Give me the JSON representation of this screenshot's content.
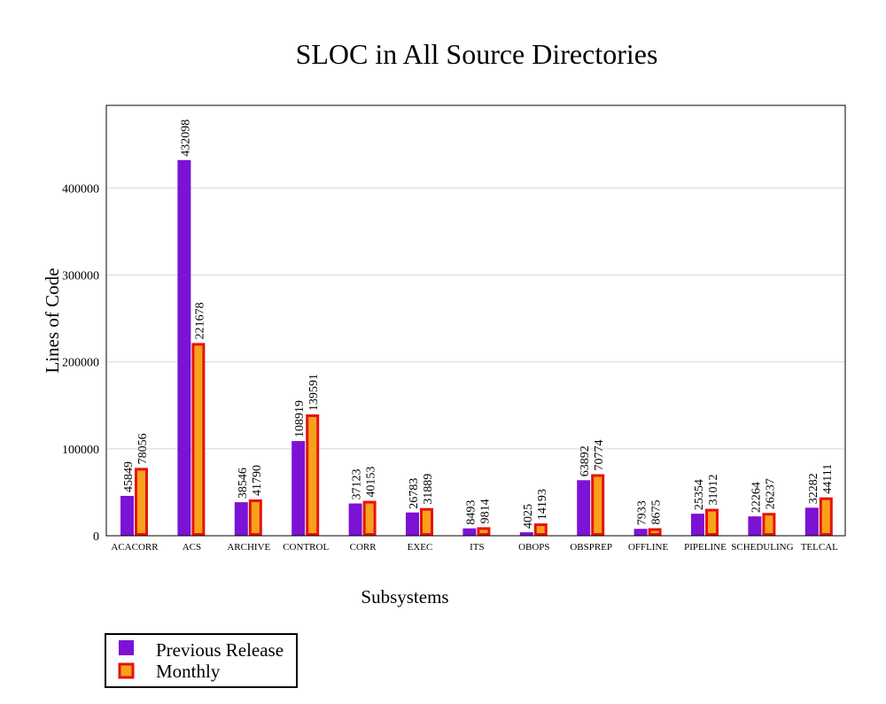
{
  "chart_data": {
    "type": "bar",
    "title": "SLOC in All Source Directories",
    "xlabel": "Subsystems",
    "ylabel": "Lines of Code",
    "ylim": [
      0,
      495000
    ],
    "yticks": [
      0,
      100000,
      200000,
      300000,
      400000
    ],
    "ytick_labels": [
      "0",
      "100000",
      "200000",
      "300000",
      "400000"
    ],
    "grid": true,
    "legend_position": "bottom-left",
    "categories": [
      "ACACORR",
      "ACS",
      "ARCHIVE",
      "CONTROL",
      "CORR",
      "EXEC",
      "ITS",
      "OBOPS",
      "OBSPREP",
      "OFFLINE",
      "PIPELINE",
      "SCHEDULING",
      "TELCAL"
    ],
    "series": [
      {
        "name": "Previous Release",
        "color": "#7b12d4",
        "values": [
          45849,
          432098,
          38546,
          108919,
          37123,
          26783,
          8493,
          4025,
          63892,
          7933,
          25354,
          22264,
          32282
        ],
        "labels": [
          "45849",
          "432098",
          "38546",
          "108919",
          "37123",
          "26783",
          "8493",
          "4025",
          "63892",
          "7933",
          "25354",
          "22264",
          "32282"
        ]
      },
      {
        "name": "Monthly",
        "color": "#f7a21b",
        "edge_color": "#e8110f",
        "values": [
          78056,
          221678,
          41790,
          139591,
          40153,
          31889,
          9814,
          14193,
          70774,
          8675,
          31012,
          26237,
          44111
        ],
        "labels": [
          "78056",
          "221678",
          "41790",
          "139591",
          "40153",
          "31889",
          "9814",
          "14193",
          "70774",
          "8675",
          "31012",
          "26237",
          "44111"
        ]
      }
    ]
  }
}
